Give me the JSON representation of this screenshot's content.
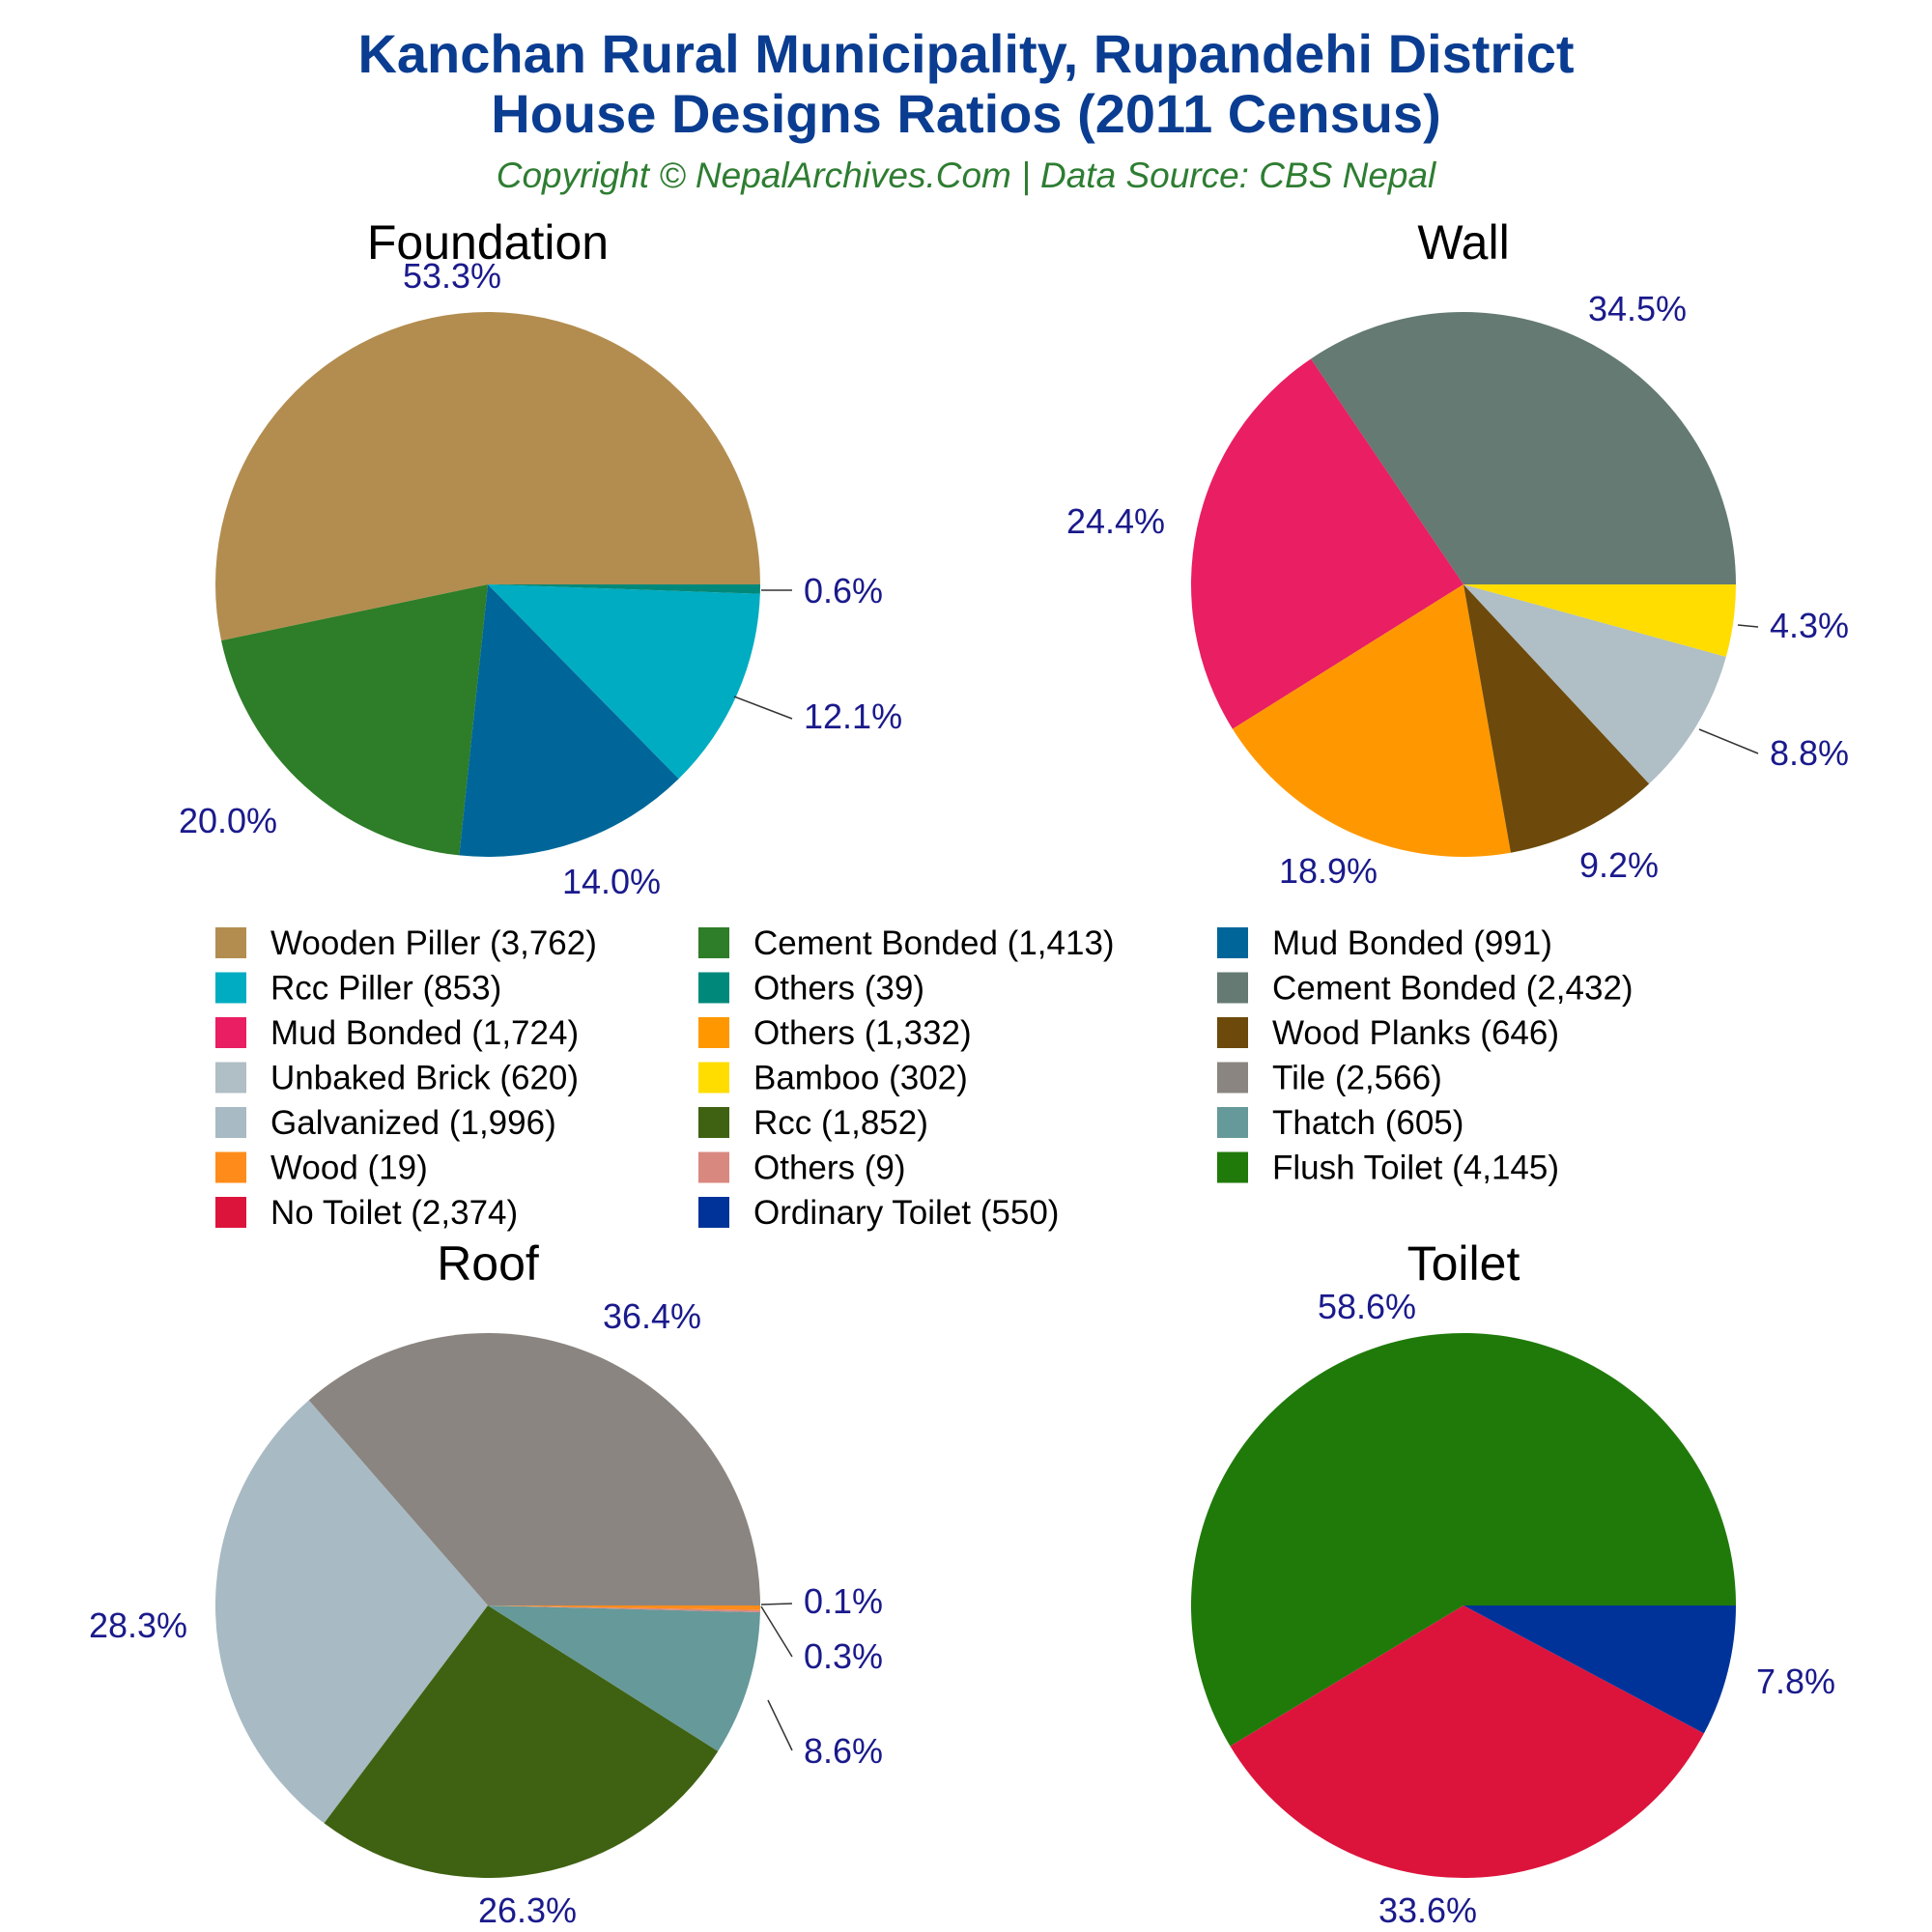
{
  "title_line1": "Kanchan Rural Municipality, Rupandehi District",
  "title_line2": "House Designs Ratios (2011 Census)",
  "subtitle": "Copyright © NepalArchives.Com | Data Source: CBS Nepal",
  "chart_data": [
    {
      "type": "pie",
      "title": "Foundation",
      "slices": [
        {
          "label": "Wooden Piller",
          "value": 3762,
          "pct": "53.3%",
          "color": "#b38d4f"
        },
        {
          "label": "Cement Bonded",
          "value": 1413,
          "pct": "20.0%",
          "color": "#2e7d28"
        },
        {
          "label": "Mud Bonded",
          "value": 991,
          "pct": "14.0%",
          "color": "#006699"
        },
        {
          "label": "Rcc Piller",
          "value": 853,
          "pct": "12.1%",
          "color": "#00acc1"
        },
        {
          "label": "Others",
          "value": 39,
          "pct": "0.6%",
          "color": "#00897b"
        }
      ]
    },
    {
      "type": "pie",
      "title": "Wall",
      "slices": [
        {
          "label": "Cement Bonded",
          "value": 2432,
          "pct": "34.5%",
          "color": "#647a72"
        },
        {
          "label": "Mud Bonded",
          "value": 1724,
          "pct": "24.4%",
          "color": "#e91e63"
        },
        {
          "label": "Others",
          "value": 1332,
          "pct": "18.9%",
          "color": "#ff9800"
        },
        {
          "label": "Wood Planks",
          "value": 646,
          "pct": "9.2%",
          "color": "#6d4a0b"
        },
        {
          "label": "Unbaked Brick",
          "value": 620,
          "pct": "8.8%",
          "color": "#b0bec5"
        },
        {
          "label": "Bamboo",
          "value": 302,
          "pct": "4.3%",
          "color": "#ffdd00"
        }
      ]
    },
    {
      "type": "pie",
      "title": "Roof",
      "slices": [
        {
          "label": "Tile",
          "value": 2566,
          "pct": "36.4%",
          "color": "#8a8580"
        },
        {
          "label": "Galvanized",
          "value": 1996,
          "pct": "28.3%",
          "color": "#a8bac3"
        },
        {
          "label": "Rcc",
          "value": 1852,
          "pct": "26.3%",
          "color": "#3f6212"
        },
        {
          "label": "Thatch",
          "value": 605,
          "pct": "8.6%",
          "color": "#669999"
        },
        {
          "label": "Others",
          "value": 9,
          "pct": "0.1%",
          "color": "#d98880"
        },
        {
          "label": "Wood",
          "value": 19,
          "pct": "0.3%",
          "color": "#ff8c1a"
        }
      ]
    },
    {
      "type": "pie",
      "title": "Toilet",
      "slices": [
        {
          "label": "Flush Toilet",
          "value": 4145,
          "pct": "58.6%",
          "color": "#207a0a"
        },
        {
          "label": "No Toilet",
          "value": 2374,
          "pct": "33.6%",
          "color": "#dc143c"
        },
        {
          "label": "Ordinary Toilet",
          "value": 550,
          "pct": "7.8%",
          "color": "#003399"
        }
      ]
    }
  ],
  "legend": [
    {
      "text": "Wooden Piller (3,762)",
      "color": "#b38d4f"
    },
    {
      "text": "Cement Bonded (1,413)",
      "color": "#2e7d28"
    },
    {
      "text": "Mud Bonded (991)",
      "color": "#006699"
    },
    {
      "text": "Rcc Piller (853)",
      "color": "#00acc1"
    },
    {
      "text": "Others (39)",
      "color": "#00897b"
    },
    {
      "text": "Cement Bonded (2,432)",
      "color": "#647a72"
    },
    {
      "text": "Mud Bonded (1,724)",
      "color": "#e91e63"
    },
    {
      "text": "Others (1,332)",
      "color": "#ff9800"
    },
    {
      "text": "Wood Planks (646)",
      "color": "#6d4a0b"
    },
    {
      "text": "Unbaked Brick (620)",
      "color": "#b0bec5"
    },
    {
      "text": "Bamboo (302)",
      "color": "#ffdd00"
    },
    {
      "text": "Tile (2,566)",
      "color": "#8a8580"
    },
    {
      "text": "Galvanized (1,996)",
      "color": "#a8bac3"
    },
    {
      "text": "Rcc (1,852)",
      "color": "#3f6212"
    },
    {
      "text": "Thatch (605)",
      "color": "#669999"
    },
    {
      "text": "Wood (19)",
      "color": "#ff8c1a"
    },
    {
      "text": "Others (9)",
      "color": "#d98880"
    },
    {
      "text": "Flush Toilet (4,145)",
      "color": "#207a0a"
    },
    {
      "text": "No Toilet (2,374)",
      "color": "#dc143c"
    },
    {
      "text": "Ordinary Toilet (550)",
      "color": "#003399"
    }
  ]
}
